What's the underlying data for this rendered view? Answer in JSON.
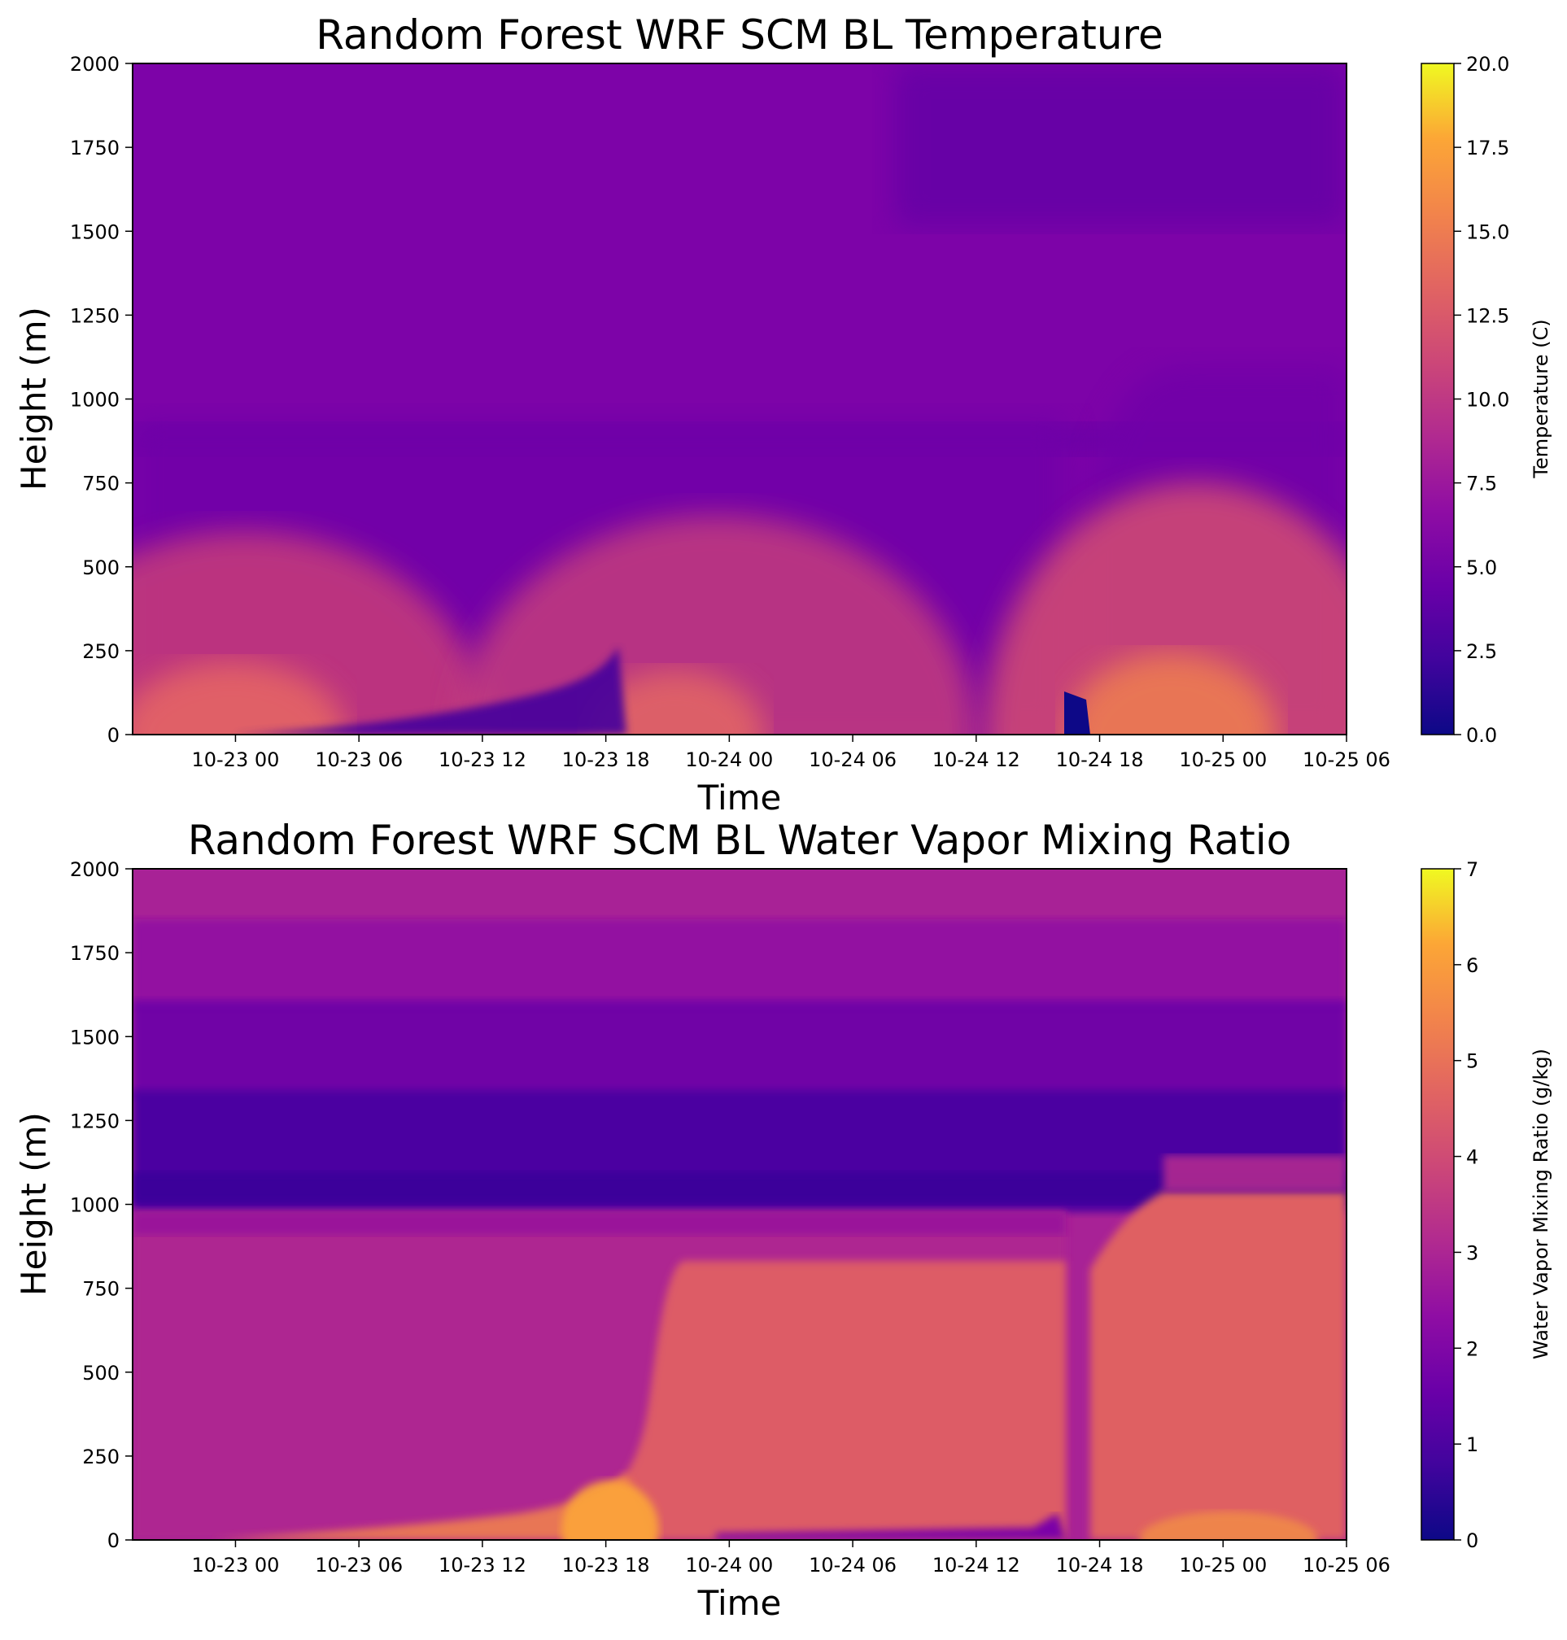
{
  "chart_data": [
    {
      "type": "heatmap",
      "title": "Random Forest WRF SCM BL Temperature",
      "xlabel": "Time",
      "ylabel": "Height (m)",
      "x_ticks": [
        "10-23 00",
        "10-23 06",
        "10-23 12",
        "10-23 18",
        "10-24 00",
        "10-24 06",
        "10-24 12",
        "10-24 18",
        "10-25 00",
        "10-25 06"
      ],
      "x_range": [
        "10-22 19:00",
        "10-25 06:00"
      ],
      "y_ticks": [
        "0",
        "250",
        "500",
        "750",
        "1000",
        "1250",
        "1500",
        "1750",
        "2000"
      ],
      "ylim": [
        0,
        2000
      ],
      "colorbar": {
        "label": "Temperature (C)",
        "colormap": "plasma",
        "range": [
          0,
          20
        ],
        "ticks": [
          "0.0",
          "2.5",
          "5.0",
          "7.5",
          "10.0",
          "12.5",
          "15.0",
          "17.5",
          "20.0"
        ]
      },
      "features": [
        {
          "description": "boundary layer top",
          "height_m": 950,
          "time_range": [
            "10-22 19:00",
            "10-24 16:00"
          ]
        },
        {
          "description": "boundary layer top",
          "height_m": 1100,
          "time_range": [
            "10-24 22:00",
            "10-25 06:00"
          ]
        },
        {
          "description": "warm surface layer",
          "value_c": 13,
          "time": "10-22 23:00"
        },
        {
          "description": "warm surface layer",
          "value_c": 13.5,
          "time": "10-24 23:00"
        },
        {
          "description": "cold surface spot",
          "value_c": 0,
          "time": "10-24 16:30"
        }
      ]
    },
    {
      "type": "heatmap",
      "title": "Random Forest WRF SCM BL Water Vapor Mixing Ratio",
      "xlabel": "Time",
      "ylabel": "Height (m)",
      "x_ticks": [
        "10-23 00",
        "10-23 06",
        "10-23 12",
        "10-23 18",
        "10-24 00",
        "10-24 06",
        "10-24 12",
        "10-24 18",
        "10-25 00",
        "10-25 06"
      ],
      "x_range": [
        "10-22 19:00",
        "10-25 06:00"
      ],
      "y_ticks": [
        "0",
        "250",
        "500",
        "750",
        "1000",
        "1250",
        "1500",
        "1750",
        "2000"
      ],
      "ylim": [
        0,
        2000
      ],
      "colorbar": {
        "label": "Water Vapor Mixing Ratio (g/kg)",
        "colormap": "plasma",
        "range": [
          0,
          7
        ],
        "ticks": [
          "0",
          "1",
          "2",
          "3",
          "4",
          "5",
          "6",
          "7"
        ]
      },
      "features": [
        {
          "description": "dry layer above boundary layer",
          "value_gkg": 0.8,
          "height_range_m": [
            1000,
            1400
          ]
        },
        {
          "description": "moist boundary layer",
          "value_gkg": 2.5,
          "time_range": [
            "10-22 19:00",
            "10-23 20:00"
          ]
        },
        {
          "description": "moist boundary layer",
          "value_gkg": 4.2,
          "time_range": [
            "10-23 21:00",
            "10-25 06:00"
          ]
        },
        {
          "description": "moist surface spot",
          "value_gkg": 5.5,
          "time": "10-23 19:00"
        }
      ]
    }
  ]
}
